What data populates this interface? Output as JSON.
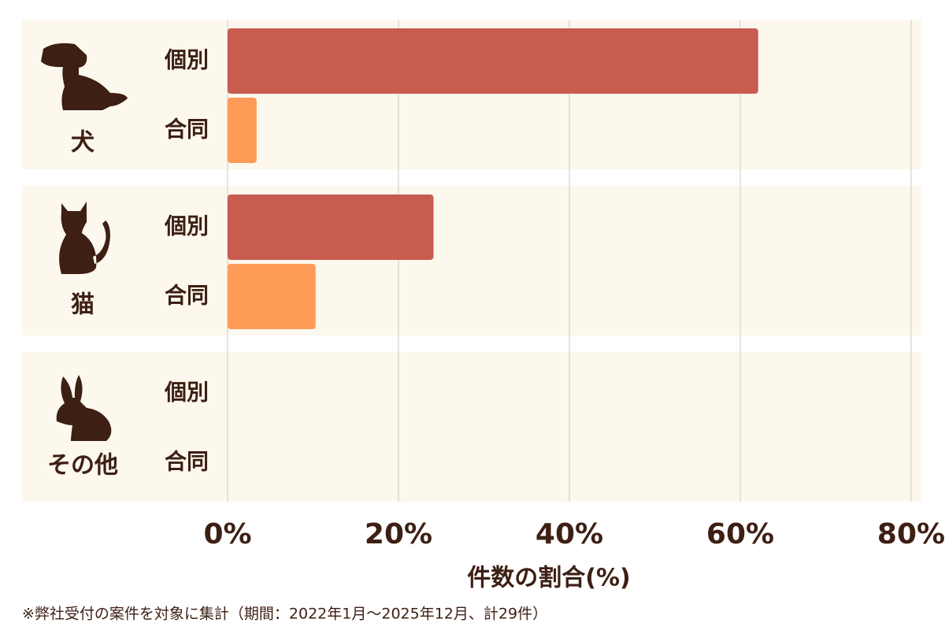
{
  "chart_data": {
    "type": "bar",
    "orientation": "horizontal",
    "categories": [
      "犬",
      "猫",
      "その他"
    ],
    "series": [
      {
        "name": "個別",
        "color": "#c75c4f",
        "values": [
          62.1,
          24.1,
          0
        ]
      },
      {
        "name": "合同",
        "color": "#fd9b57",
        "values": [
          3.4,
          10.3,
          0
        ]
      }
    ],
    "xlim": [
      0,
      80
    ],
    "xticks": [
      {
        "value": 0,
        "label": "0%"
      },
      {
        "value": 20,
        "label": "20%"
      },
      {
        "value": 40,
        "label": "40%"
      },
      {
        "value": 60,
        "label": "60%"
      },
      {
        "value": 80,
        "label": "80%"
      }
    ],
    "xlabel": "件数の割合(%)",
    "grid": true,
    "footnote": "※弊社受付の案件を対象に集計（期間：2022年1月～2025年12月、計29件）"
  }
}
